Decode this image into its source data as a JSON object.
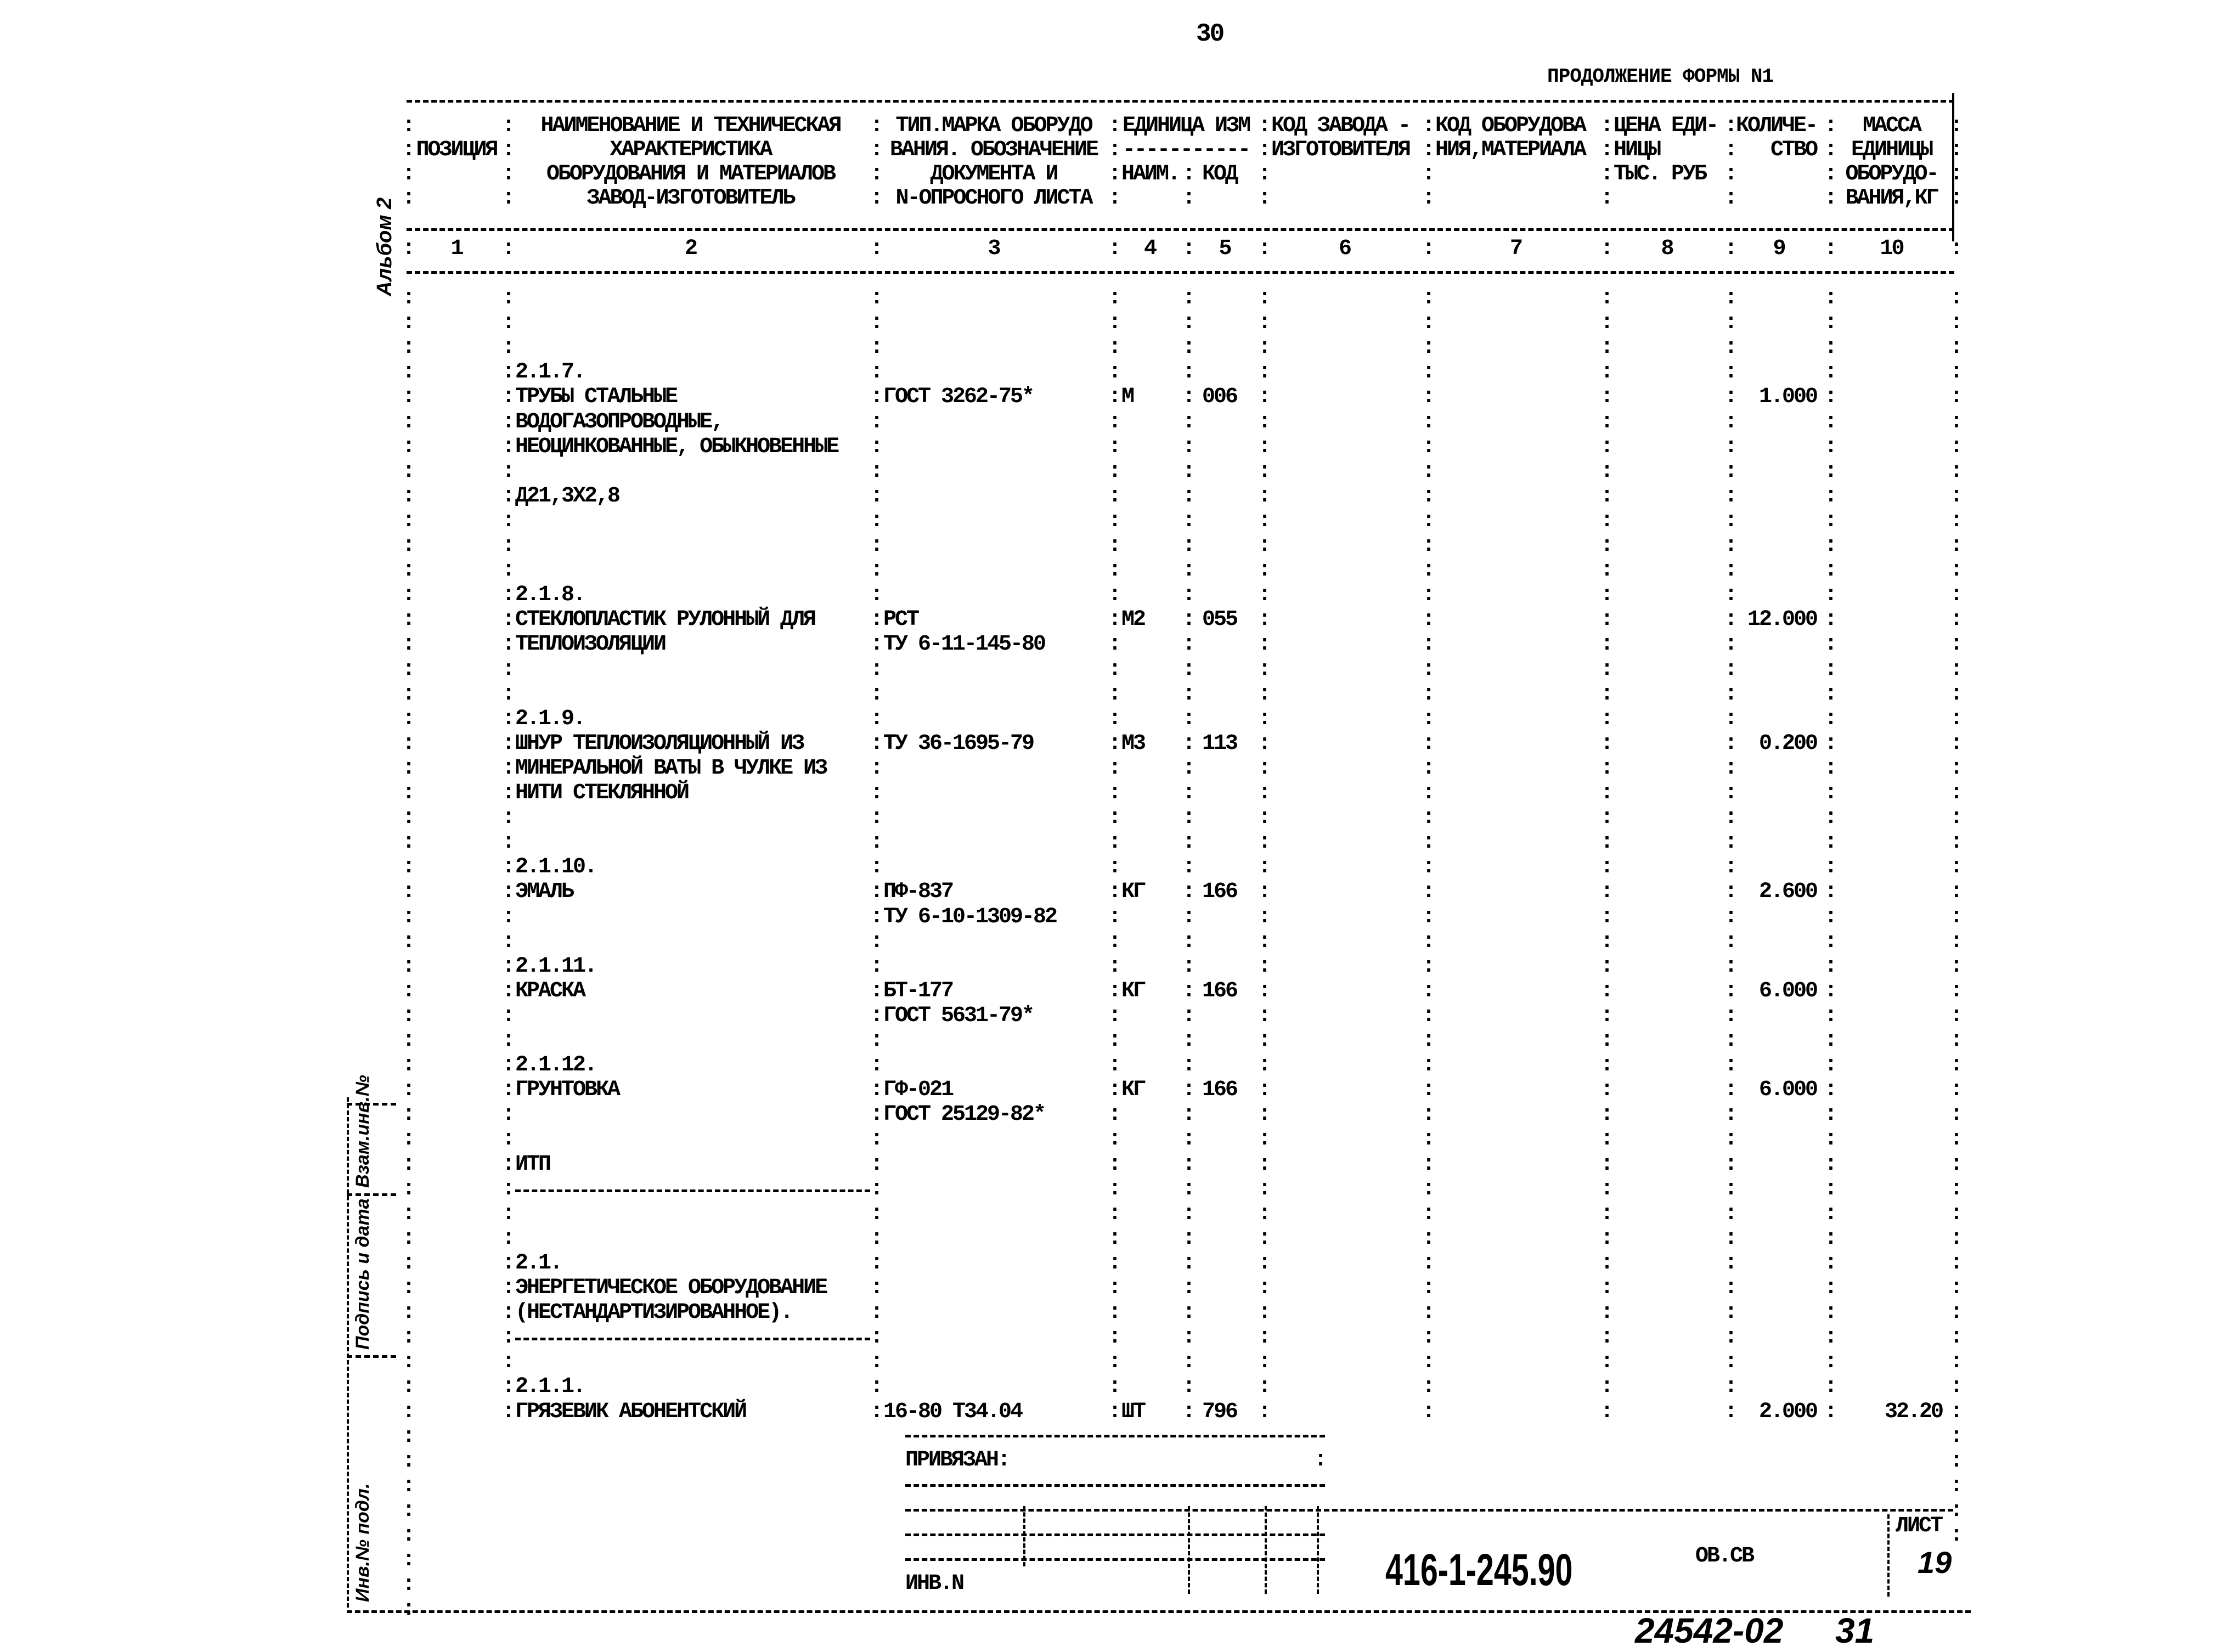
{
  "page_number": "30",
  "form_title": "ПРОДОЛЖЕНИЕ ФОРМЫ N1",
  "album_label": "Альбом 2",
  "header": {
    "rows": [
      [
        "",
        "НАИМЕНОВАНИЕ И ТЕХНИЧЕСКАЯ",
        "ТИП.МАРКА ОБОРУДО",
        "ЕДИНИЦА ИЗМ",
        "",
        "КОД ЗАВОДА -",
        "КОД ОБОРУДОВА",
        "ЦЕНА ЕДИ-",
        "КОЛИЧЕ-",
        "МАССА"
      ],
      [
        "ПОЗИЦИЯ",
        "ХАРАКТЕРИСТИКА",
        "ВАНИЯ. ОБОЗНАЧЕНИЕ",
        "-----------",
        "",
        "ИЗГОТОВИТЕЛЯ",
        "НИЯ,МАТЕРИАЛА",
        "НИЦЫ",
        "СТВО",
        "ЕДИНИЦЫ"
      ],
      [
        "",
        "ОБОРУДОВАНИЯ И МАТЕРИАЛОВ",
        "ДОКУМЕНТА И",
        "НАИМ.",
        "КОД",
        "",
        "",
        "ТЫС. РУБ",
        "",
        "ОБОРУДО-"
      ],
      [
        "",
        "ЗАВОД-ИЗГОТОВИТЕЛЬ",
        "N-ОПРОСНОГО ЛИСТА",
        "",
        "",
        "",
        "",
        "",
        "",
        "ВАНИЯ,КГ"
      ]
    ],
    "column_numbers": [
      "1",
      "2",
      "3",
      "4",
      "5",
      "6",
      "7",
      "8",
      "9",
      "10"
    ]
  },
  "rows": [
    {
      "c": []
    },
    {
      "c": []
    },
    {
      "c": []
    },
    {
      "c": [
        "",
        "2.1.7."
      ]
    },
    {
      "c": [
        "",
        "ТРУБЫ СТАЛЬНЫЕ",
        "ГОСТ 3262-75*",
        "М",
        "006",
        "",
        "",
        "",
        "1.000",
        ""
      ]
    },
    {
      "c": [
        "",
        "ВОДОГАЗОПРОВОДНЫЕ,"
      ]
    },
    {
      "c": [
        "",
        "НЕОЦИНКОВАННЫЕ, ОБЫКНОВЕННЫЕ"
      ]
    },
    {
      "c": []
    },
    {
      "c": [
        "",
        "Д21,3Х2,8"
      ]
    },
    {
      "c": []
    },
    {
      "c": []
    },
    {
      "c": []
    },
    {
      "c": [
        "",
        "2.1.8."
      ]
    },
    {
      "c": [
        "",
        "СТЕКЛОПЛАСТИК РУЛОННЫЙ ДЛЯ",
        "РСТ",
        "М2",
        "055",
        "",
        "",
        "",
        "12.000",
        ""
      ]
    },
    {
      "c": [
        "",
        "ТЕПЛОИЗОЛЯЦИИ",
        "ТУ 6-11-145-80"
      ]
    },
    {
      "c": []
    },
    {
      "c": []
    },
    {
      "c": [
        "",
        "2.1.9."
      ]
    },
    {
      "c": [
        "",
        "ШНУР ТЕПЛОИЗОЛЯЦИОННЫЙ ИЗ",
        "ТУ 36-1695-79",
        "М3",
        "113",
        "",
        "",
        "",
        "0.200",
        ""
      ]
    },
    {
      "c": [
        "",
        "МИНЕРАЛЬНОЙ ВАТЫ В ЧУЛКЕ ИЗ"
      ]
    },
    {
      "c": [
        "",
        "НИТИ СТЕКЛЯННОЙ"
      ]
    },
    {
      "c": []
    },
    {
      "c": []
    },
    {
      "c": [
        "",
        "2.1.10."
      ]
    },
    {
      "c": [
        "",
        "ЭМАЛЬ",
        "ПФ-837",
        "КГ",
        "166",
        "",
        "",
        "",
        "2.600",
        ""
      ]
    },
    {
      "c": [
        "",
        "",
        "ТУ 6-10-1309-82"
      ]
    },
    {
      "c": []
    },
    {
      "c": [
        "",
        "2.1.11."
      ]
    },
    {
      "c": [
        "",
        "КРАСКА",
        "БТ-177",
        "КГ",
        "166",
        "",
        "",
        "",
        "6.000",
        ""
      ]
    },
    {
      "c": [
        "",
        "",
        "ГОСТ 5631-79*"
      ]
    },
    {
      "c": []
    },
    {
      "c": [
        "",
        "2.1.12."
      ]
    },
    {
      "c": [
        "",
        "ГРУНТОВКА",
        "ГФ-021",
        "КГ",
        "166",
        "",
        "",
        "",
        "6.000",
        ""
      ]
    },
    {
      "c": [
        "",
        "",
        "ГОСТ 25129-82*"
      ]
    },
    {
      "c": []
    },
    {
      "c": [
        "",
        "ИТП"
      ]
    },
    {
      "c": [],
      "rule": true
    },
    {
      "c": []
    },
    {
      "c": []
    },
    {
      "c": [
        "",
        "2.1."
      ]
    },
    {
      "c": [
        "",
        "ЭНЕРГЕТИЧЕСКОЕ ОБОРУДОВАНИЕ"
      ]
    },
    {
      "c": [
        "",
        "(НЕСТАНДАРТИЗИРОВАННОЕ)."
      ]
    },
    {
      "c": [],
      "rule": true
    },
    {
      "c": []
    },
    {
      "c": [
        "",
        "2.1.1."
      ]
    },
    {
      "c": [
        "",
        "ГРЯЗЕВИК АБОНЕНТСКИЙ",
        "16-80 Т34.04",
        "ШТ",
        "796",
        "",
        "",
        "",
        "2.000",
        "32.20"
      ]
    }
  ],
  "margin_stamp": {
    "inv_original": "Инв.№ подл.",
    "signature_date": "Подпись и дата",
    "replacement_inv": "Взам.инв.№"
  },
  "title_block": {
    "linked_label": "ПРИВЯЗАН:",
    "inv_label": "ИНВ.N",
    "document_code": "416-1-245.90",
    "section": "ОВ.СВ",
    "sheet_label": "ЛИСТ",
    "sheet_number": "19"
  },
  "footer": {
    "archive_number": "24542-02",
    "page_mark": "31"
  }
}
